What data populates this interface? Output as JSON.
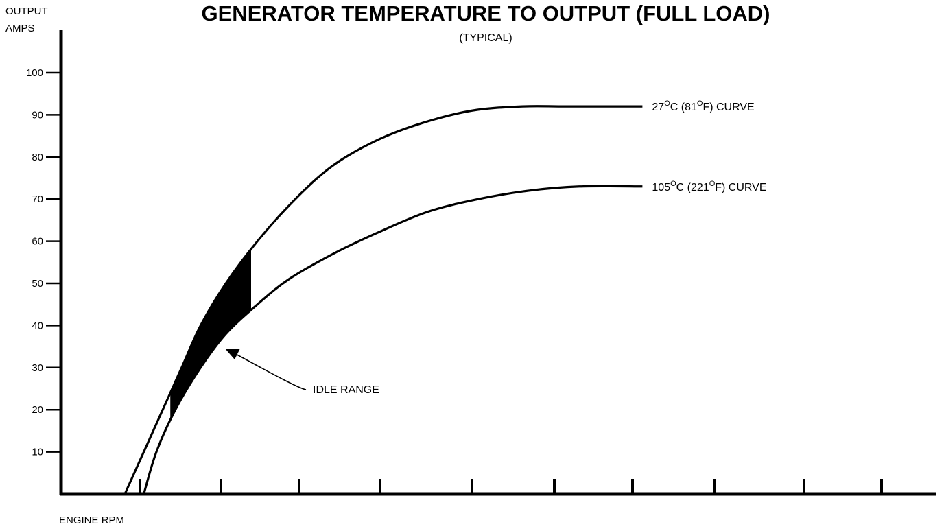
{
  "chart_data": {
    "type": "line",
    "title": "GENERATOR TEMPERATURE TO OUTPUT (FULL LOAD)",
    "subtitle": "(TYPICAL)",
    "ylabel_line1": "OUTPUT",
    "ylabel_line2": "AMPS",
    "xlabel": "ENGINE RPM",
    "ylim": [
      0,
      110
    ],
    "y_ticks": [
      10,
      20,
      30,
      40,
      50,
      60,
      70,
      80,
      90,
      100
    ],
    "x_tick_count": 10,
    "grid": false,
    "series": [
      {
        "name": "27°C (81°F) CURVE",
        "label_parts": [
          "27",
          "O",
          "C (81",
          "O",
          "F) CURVE"
        ],
        "color": "#000000",
        "points": [
          [
            0.0,
            0
          ],
          [
            0.3,
            10
          ],
          [
            0.6,
            20
          ],
          [
            0.9,
            30
          ],
          [
            1.2,
            40
          ],
          [
            1.6,
            50
          ],
          [
            2.1,
            60
          ],
          [
            2.7,
            70
          ],
          [
            3.3,
            78
          ],
          [
            4.0,
            84
          ],
          [
            4.7,
            88
          ],
          [
            5.5,
            91
          ],
          [
            6.3,
            92
          ],
          [
            7.0,
            92
          ],
          [
            8.2,
            92
          ]
        ]
      },
      {
        "name": "105°C (221°F) CURVE",
        "label_parts": [
          "105",
          "O",
          "C (221",
          "O",
          "F) CURVE"
        ],
        "color": "#000000",
        "points": [
          [
            0.3,
            0
          ],
          [
            0.5,
            10
          ],
          [
            0.8,
            20
          ],
          [
            1.2,
            30
          ],
          [
            1.6,
            38
          ],
          [
            2.1,
            45
          ],
          [
            2.6,
            51
          ],
          [
            3.3,
            57
          ],
          [
            4.0,
            62
          ],
          [
            4.8,
            67
          ],
          [
            5.6,
            70
          ],
          [
            6.4,
            72
          ],
          [
            7.2,
            73
          ],
          [
            8.2,
            73
          ]
        ]
      }
    ],
    "idle_range": {
      "label": "IDLE RANGE",
      "x_start": 0.72,
      "x_end": 2.0,
      "color": "#000000"
    }
  }
}
